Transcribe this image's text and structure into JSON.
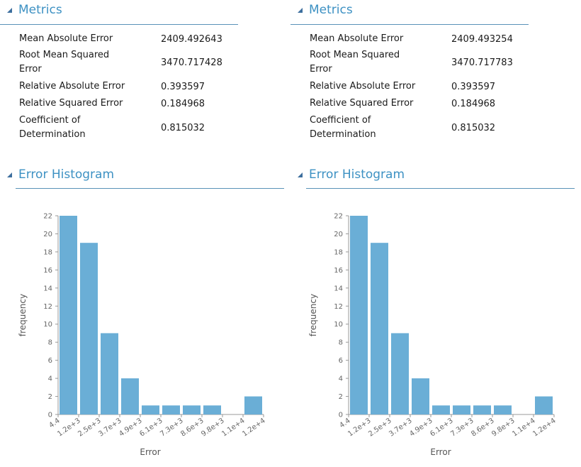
{
  "panels": [
    {
      "metrics_title": "Metrics",
      "metrics": [
        {
          "name": "Mean Absolute Error",
          "value": "2409.492643"
        },
        {
          "name": "Root Mean Squared Error",
          "value": "3470.717428"
        },
        {
          "name": "Relative Absolute Error",
          "value": "0.393597"
        },
        {
          "name": "Relative Squared Error",
          "value": "0.184968"
        },
        {
          "name": "Coefficient of Determination",
          "value": "0.815032"
        }
      ],
      "histogram_title": "Error Histogram"
    },
    {
      "metrics_title": "Metrics",
      "metrics": [
        {
          "name": "Mean Absolute Error",
          "value": "2409.493254"
        },
        {
          "name": "Root Mean Squared Error",
          "value": "3470.717783"
        },
        {
          "name": "Relative Absolute Error",
          "value": "0.393597"
        },
        {
          "name": "Relative Squared Error",
          "value": "0.184968"
        },
        {
          "name": "Coefficient of Determination",
          "value": "0.815032"
        }
      ],
      "histogram_title": "Error Histogram"
    }
  ],
  "chart_data": [
    {
      "type": "bar",
      "title": "Error Histogram",
      "xlabel": "Error",
      "ylabel": "frequency",
      "x_ticks": [
        "4.4",
        "1.2e+3",
        "2.5e+3",
        "3.7e+3",
        "4.9e+3",
        "6.1e+3",
        "7.3e+3",
        "8.6e+3",
        "9.8e+3",
        "1.1e+4",
        "1.2e+4"
      ],
      "y_ticks": [
        0,
        2,
        4,
        6,
        8,
        10,
        12,
        14,
        16,
        18,
        20,
        22
      ],
      "ylim": [
        0,
        22
      ],
      "values": [
        22,
        19,
        9,
        4,
        1,
        1,
        1,
        1,
        0,
        2
      ],
      "bar_color": "#6aaed6",
      "grid": false
    },
    {
      "type": "bar",
      "title": "Error Histogram",
      "xlabel": "Error",
      "ylabel": "frequency",
      "x_ticks": [
        "4.4",
        "1.2e+3",
        "2.5e+3",
        "3.7e+3",
        "4.9e+3",
        "6.1e+3",
        "7.3e+3",
        "8.6e+3",
        "9.8e+3",
        "1.1e+4",
        "1.2e+4"
      ],
      "y_ticks": [
        0,
        2,
        4,
        6,
        8,
        10,
        12,
        14,
        16,
        18,
        20,
        22
      ],
      "ylim": [
        0,
        22
      ],
      "values": [
        22,
        19,
        9,
        4,
        1,
        1,
        1,
        1,
        0,
        2
      ],
      "bar_color": "#6aaed6",
      "grid": false
    }
  ]
}
